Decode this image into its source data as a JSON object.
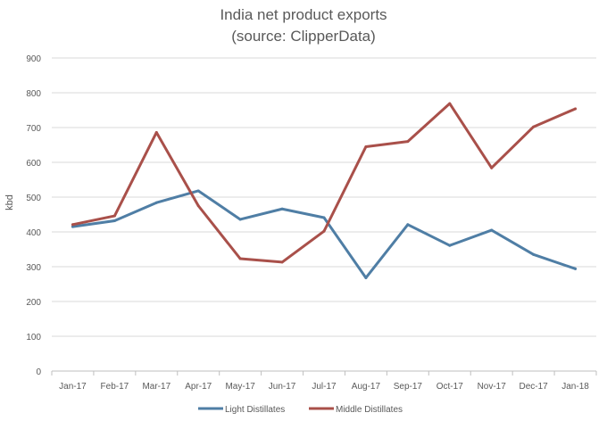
{
  "chart_data": {
    "type": "line",
    "title": "India net product exports",
    "subtitle": "(source: ClipperData)",
    "xlabel": "",
    "ylabel": "kbd",
    "ylim": [
      0,
      900
    ],
    "yticks": [
      "0",
      "100",
      "200",
      "300",
      "400",
      "500",
      "600",
      "700",
      "800",
      "900"
    ],
    "categories": [
      "Jan-17",
      "Feb-17",
      "Mar-17",
      "Apr-17",
      "May-17",
      "Jun-17",
      "Jul-17",
      "Aug-17",
      "Sep-17",
      "Oct-17",
      "Nov-17",
      "Dec-17",
      "Jan-18"
    ],
    "grid": true,
    "legend_position": "bottom",
    "series": [
      {
        "name": "Light Distillates",
        "color": "#4f7ea5",
        "values": [
          415,
          432,
          484,
          518,
          436,
          466,
          441,
          268,
          421,
          361,
          405,
          335,
          294
        ]
      },
      {
        "name": "Middle Distillates",
        "color": "#a9504a",
        "values": [
          421,
          446,
          686,
          475,
          323,
          313,
          402,
          645,
          660,
          769,
          584,
          702,
          754
        ]
      }
    ]
  }
}
